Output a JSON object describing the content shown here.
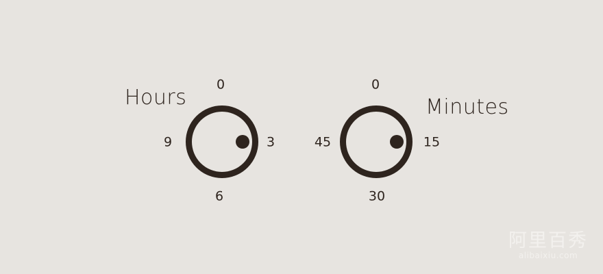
{
  "hours": {
    "title": "Hours",
    "ticks": {
      "top": "0",
      "right": "3",
      "bottom": "6",
      "left": "9"
    },
    "value": "3"
  },
  "minutes": {
    "title": "Minutes",
    "ticks": {
      "top": "0",
      "right": "15",
      "bottom": "30",
      "left": "45"
    },
    "value": "15"
  },
  "watermark": {
    "cn": "阿里百秀",
    "en": "alibaixiu.com"
  },
  "colors": {
    "background": "#e7e4e0",
    "ink": "#2e241e"
  }
}
